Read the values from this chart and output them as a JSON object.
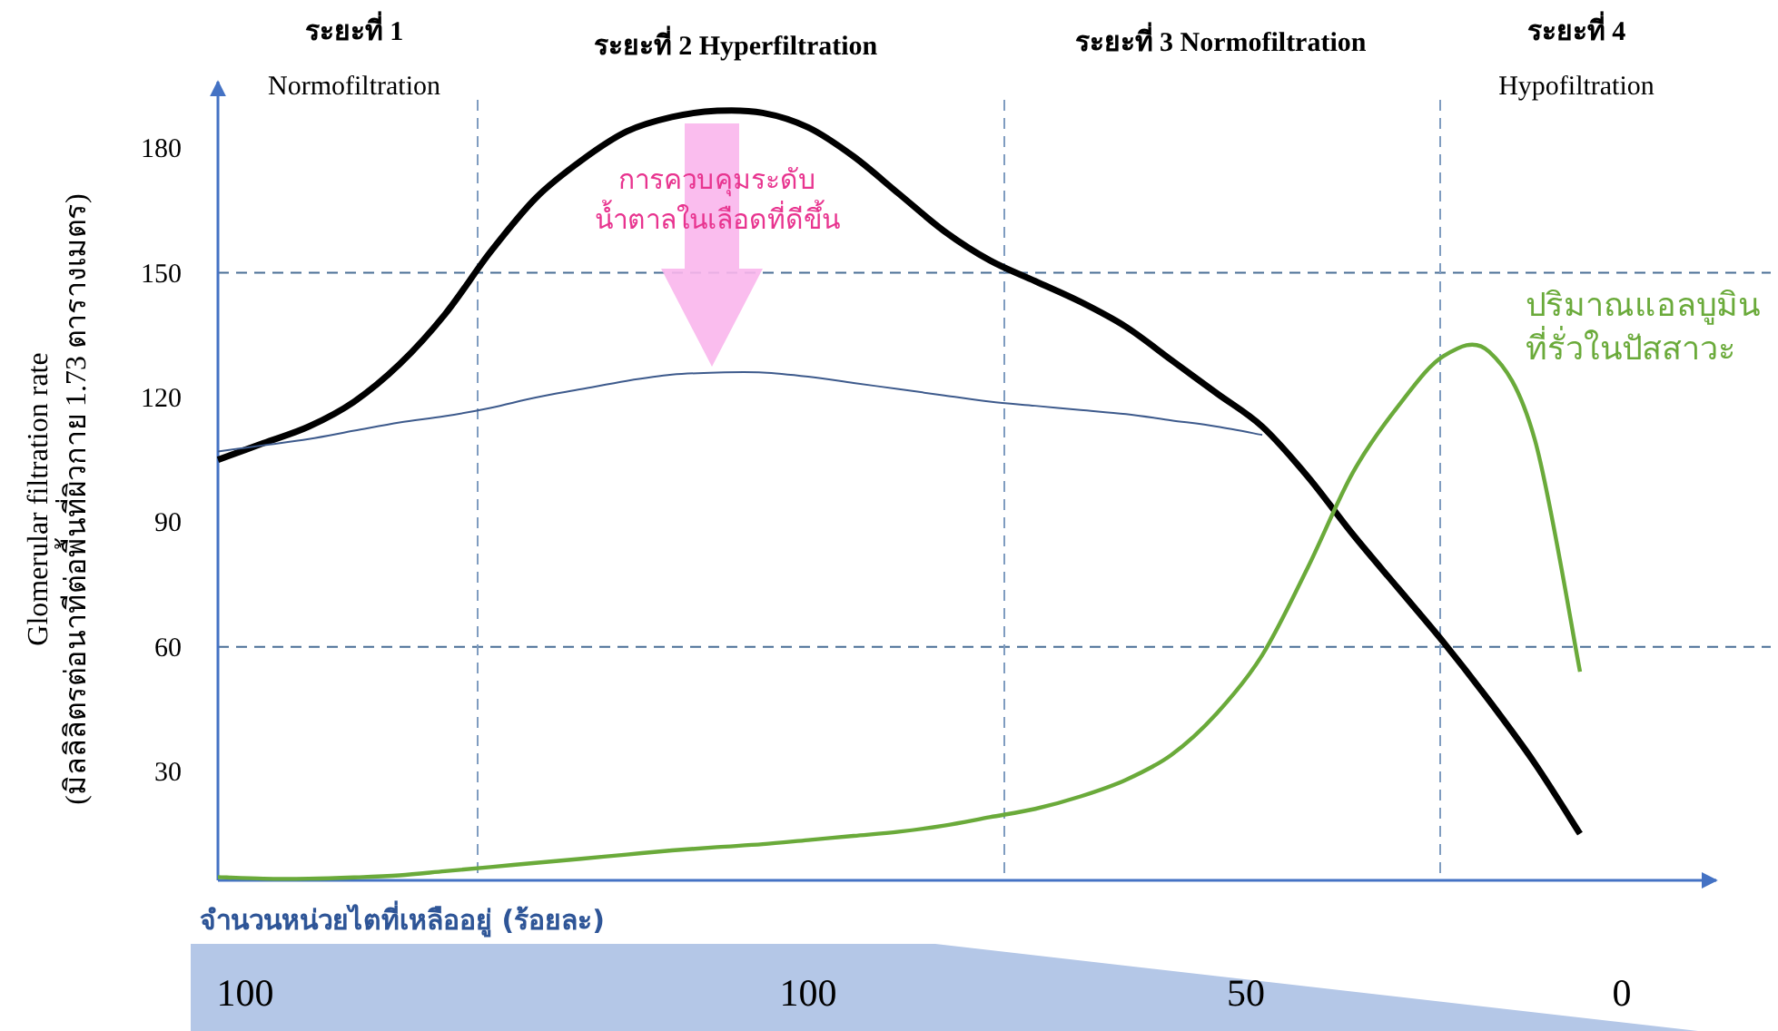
{
  "chart_data": {
    "type": "line",
    "ylabel": "Glomerular filtration rate\n(มิลลิลิตรต่อนาทีต่อพื้นที่ผิวกาย 1.73 ตารางเมตร)",
    "xlabel": "จำนวนหน่วยไตที่เหลืออยู่ (ร้อยละ)",
    "categories": [
      null,
      null,
      null,
      null,
      null,
      null,
      null,
      null,
      null,
      null,
      null,
      null,
      null,
      null,
      null,
      null,
      null,
      null,
      null,
      null,
      null,
      null,
      null,
      null,
      null,
      null,
      null,
      null,
      null,
      null,
      null,
      null,
      null,
      null
    ],
    "ylim": [
      3.8,
      196
    ],
    "yticks": [
      30,
      60,
      90,
      120,
      150,
      180
    ],
    "marker": "none",
    "series": [
      {
        "color": "#000000",
        "values": [
          105,
          109,
          113,
          119,
          128,
          140,
          155,
          168,
          177,
          184,
          187.5,
          189,
          188.5,
          185,
          178,
          169,
          160,
          153,
          148,
          143,
          137,
          129,
          121,
          113,
          101,
          87,
          74,
          61,
          47,
          32,
          15,
          null,
          null,
          null
        ]
      },
      {
        "color": "#3d5a8c",
        "values": [
          107,
          108.5,
          110,
          112,
          114,
          115.5,
          117.5,
          120,
          122,
          124,
          125.5,
          126,
          126,
          125,
          123.5,
          122,
          120.5,
          119,
          118,
          117,
          116,
          114.5,
          113,
          111,
          null,
          null,
          null,
          null,
          null,
          null,
          null,
          null,
          null,
          null
        ]
      },
      {
        "name": "ปริมาณแอลบูมิน\nที่รั่วในปัสสาวะ",
        "color": "#6aaa3a",
        "values": [
          4.6,
          4.2,
          4.2,
          4.5,
          5,
          6,
          7,
          8,
          9,
          10,
          11,
          11.8,
          12.5,
          13.5,
          14.5,
          15.5,
          17,
          19,
          21,
          24,
          28,
          34,
          44,
          58,
          79,
          102,
          118,
          130,
          131,
          110,
          54,
          null,
          null,
          null
        ]
      }
    ],
    "ref_lines": [
      {
        "axis": "y",
        "value": 150,
        "color": "#4a6f96",
        "line_style": "dashed"
      },
      {
        "axis": "y",
        "value": 60,
        "color": "#4a6f96",
        "line_style": "dashed"
      }
    ],
    "annotations": [
      "ระยะที่ 1\nNormofiltration",
      "ระยะที่ 2 Hyperfiltration",
      "ระยะที่ 3 Normofiltration",
      "ระยะที่ 4\nHypofiltration",
      "การควบคุมระดับ\nน้ำตาลในเลือดที่ดีขึ้น",
      "100",
      "100",
      "50",
      "0"
    ]
  }
}
